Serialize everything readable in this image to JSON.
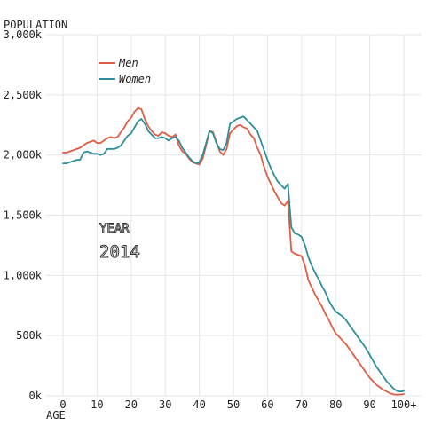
{
  "chart_data": {
    "type": "line",
    "ylabel": "POPULATION",
    "xlabel": "AGE",
    "grid": true,
    "legend_position": "top-left",
    "xlim": [
      0,
      100
    ],
    "ylim": [
      0,
      3000
    ],
    "x_ticks": [
      0,
      10,
      20,
      30,
      40,
      50,
      60,
      70,
      80,
      90,
      100
    ],
    "x_tick_labels": [
      "0",
      "10",
      "20",
      "30",
      "40",
      "50",
      "60",
      "70",
      "80",
      "90",
      "100+"
    ],
    "y_ticks": [
      0,
      500,
      1000,
      1500,
      2000,
      2500,
      3000
    ],
    "y_tick_labels": [
      "0k",
      "500k",
      "1,000k",
      "1,500k",
      "2,000k",
      "2,500k",
      "3,000k"
    ],
    "annotation": {
      "label": "YEAR",
      "value": "2014"
    },
    "x": [
      0,
      1,
      2,
      3,
      4,
      5,
      6,
      7,
      8,
      9,
      10,
      11,
      12,
      13,
      14,
      15,
      16,
      17,
      18,
      19,
      20,
      21,
      22,
      23,
      24,
      25,
      26,
      27,
      28,
      29,
      30,
      31,
      32,
      33,
      34,
      35,
      36,
      37,
      38,
      39,
      40,
      41,
      42,
      43,
      44,
      45,
      46,
      47,
      48,
      49,
      50,
      51,
      52,
      53,
      54,
      55,
      56,
      57,
      58,
      59,
      60,
      61,
      62,
      63,
      64,
      65,
      66,
      67,
      68,
      69,
      70,
      71,
      72,
      73,
      74,
      75,
      76,
      77,
      78,
      79,
      80,
      81,
      82,
      83,
      84,
      85,
      86,
      87,
      88,
      89,
      90,
      91,
      92,
      93,
      94,
      95,
      96,
      97,
      98,
      99,
      100
    ],
    "series": [
      {
        "name": "Men",
        "color": "#e05d45",
        "values": [
          2020,
          2020,
          2030,
          2040,
          2050,
          2060,
          2080,
          2100,
          2110,
          2120,
          2100,
          2100,
          2120,
          2140,
          2150,
          2140,
          2150,
          2190,
          2230,
          2280,
          2310,
          2360,
          2390,
          2380,
          2300,
          2240,
          2200,
          2170,
          2160,
          2190,
          2180,
          2160,
          2150,
          2170,
          2080,
          2030,
          2010,
          1970,
          1940,
          1930,
          1920,
          1970,
          2080,
          2200,
          2190,
          2110,
          2030,
          2000,
          2050,
          2180,
          2210,
          2240,
          2250,
          2230,
          2220,
          2170,
          2140,
          2060,
          2000,
          1900,
          1820,
          1760,
          1700,
          1650,
          1600,
          1580,
          1620,
          1200,
          1180,
          1170,
          1160,
          1080,
          960,
          900,
          840,
          790,
          740,
          680,
          630,
          570,
          520,
          490,
          460,
          430,
          390,
          350,
          310,
          270,
          230,
          190,
          150,
          120,
          90,
          70,
          50,
          35,
          20,
          12,
          10,
          10,
          15
        ]
      },
      {
        "name": "Women",
        "color": "#2e8f98",
        "values": [
          1930,
          1930,
          1940,
          1950,
          1960,
          1960,
          2020,
          2030,
          2020,
          2010,
          2010,
          2000,
          2010,
          2050,
          2050,
          2050,
          2060,
          2080,
          2120,
          2160,
          2180,
          2230,
          2280,
          2300,
          2260,
          2200,
          2170,
          2140,
          2140,
          2150,
          2140,
          2120,
          2140,
          2150,
          2120,
          2060,
          2020,
          1980,
          1950,
          1930,
          1940,
          2000,
          2100,
          2200,
          2180,
          2100,
          2050,
          2040,
          2100,
          2260,
          2280,
          2300,
          2310,
          2320,
          2290,
          2260,
          2230,
          2200,
          2120,
          2040,
          1960,
          1890,
          1830,
          1780,
          1750,
          1720,
          1760,
          1400,
          1350,
          1340,
          1320,
          1250,
          1150,
          1080,
          1020,
          970,
          910,
          860,
          790,
          740,
          700,
          680,
          660,
          630,
          590,
          550,
          510,
          470,
          430,
          390,
          340,
          290,
          240,
          200,
          160,
          120,
          90,
          60,
          40,
          35,
          40
        ]
      }
    ]
  }
}
